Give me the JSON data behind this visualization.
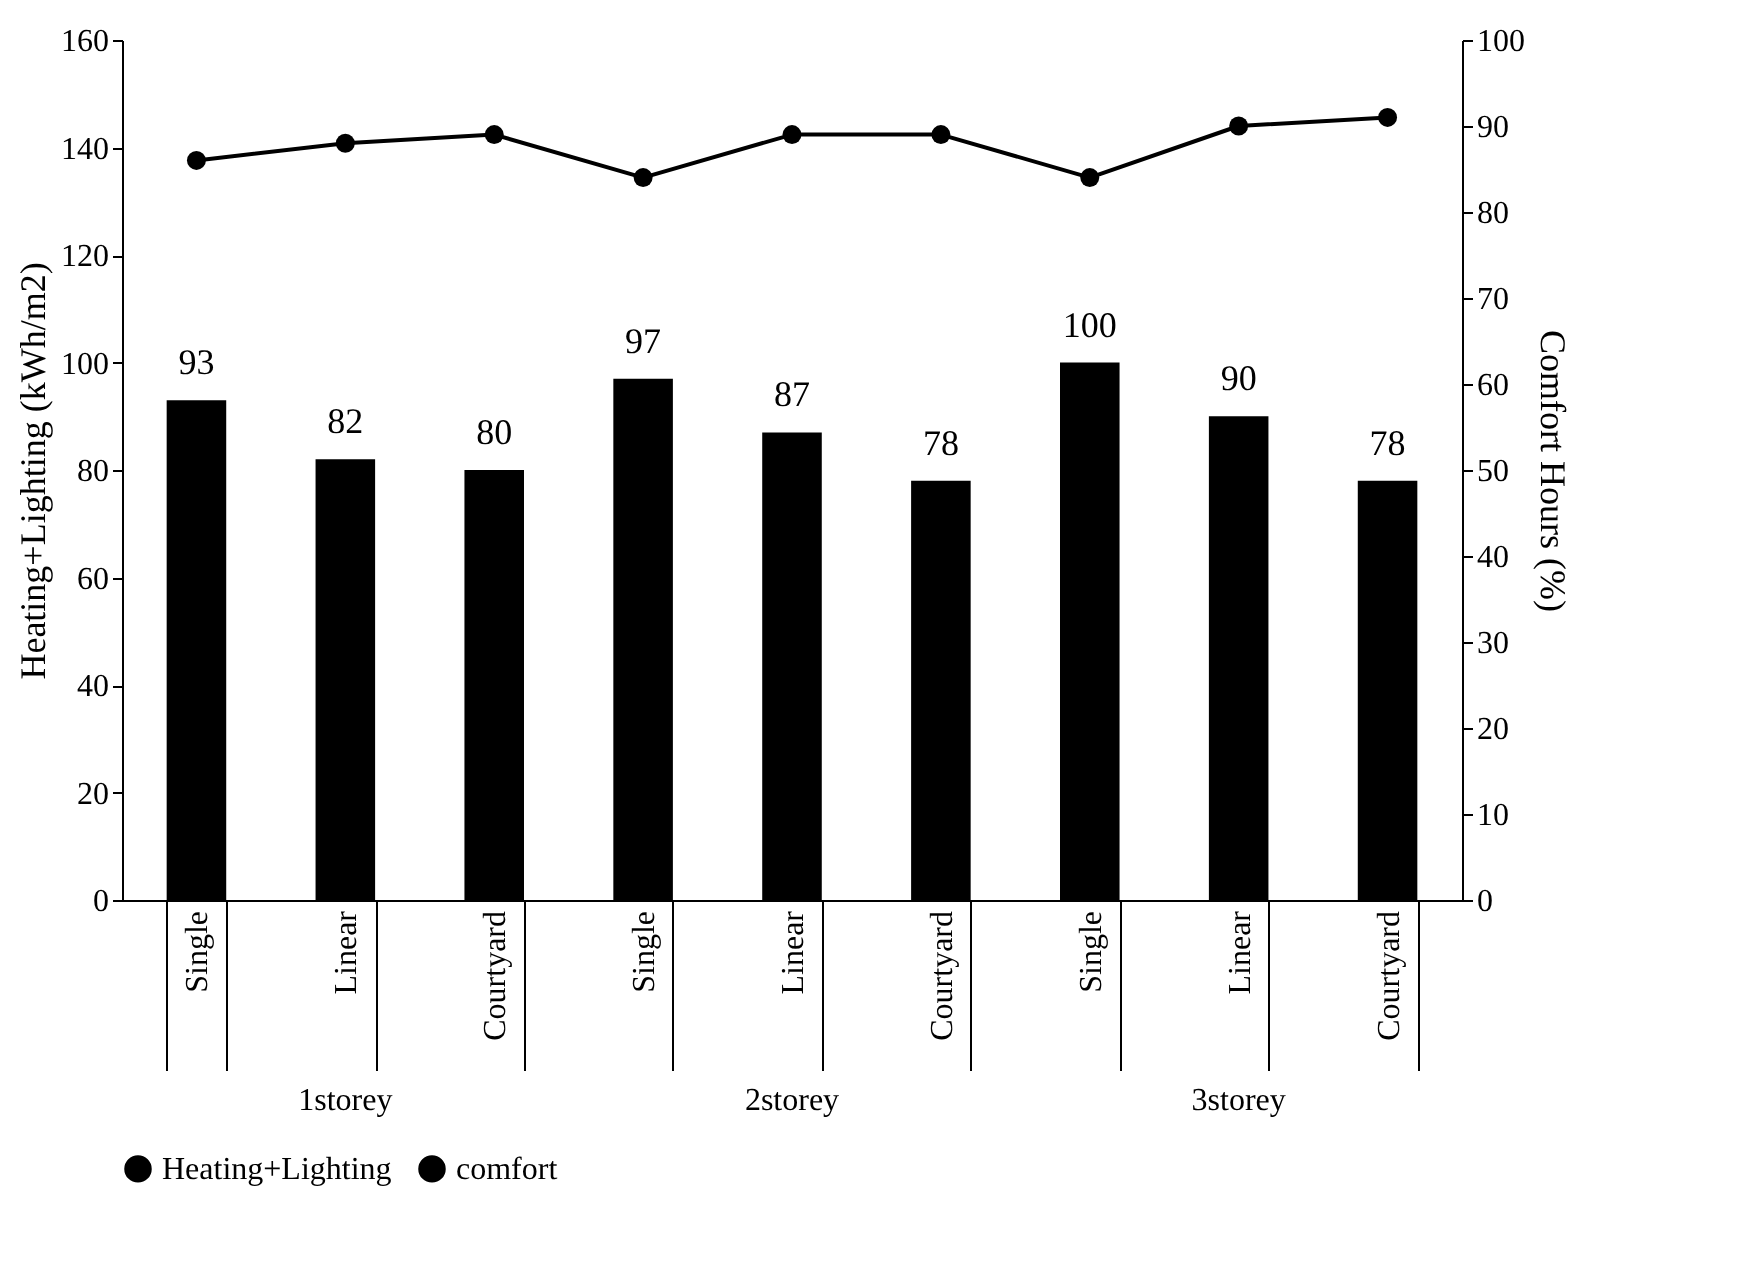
{
  "chart_data": {
    "type": "bar",
    "ylabel": "Heating+Lighting (kWh/m2)",
    "y2label": "Comfort Hours (%)",
    "categories": [
      "Single",
      "Linear",
      "Courtyard",
      "Single",
      "Linear",
      "Courtyard",
      "Single",
      "Linear",
      "Courtyard"
    ],
    "annotations": [
      "1storey",
      "2storey",
      "3storey"
    ],
    "series": [
      {
        "name": "Heating+Lighting",
        "color": "#000000",
        "values": [
          93,
          82,
          80,
          97,
          87,
          78,
          100,
          90,
          78
        ],
        "value_labels": [
          "93",
          "82",
          "80",
          "97",
          "87",
          "78",
          "100",
          "90",
          "78"
        ]
      },
      {
        "name": "comfort",
        "type": "line",
        "axis": "y2",
        "color": "#000000",
        "marker": "circle",
        "values": [
          86,
          88,
          89,
          84,
          89,
          89,
          84,
          90,
          91
        ]
      }
    ],
    "ylim": [
      0,
      160
    ],
    "yticks": [
      0,
      20,
      40,
      60,
      80,
      100,
      120,
      140,
      160
    ],
    "y2lim": [
      0,
      100
    ],
    "y2ticks": [
      0,
      10,
      20,
      30,
      40,
      50,
      60,
      70,
      80,
      90,
      100
    ],
    "grid": false,
    "legend": "bottom"
  }
}
